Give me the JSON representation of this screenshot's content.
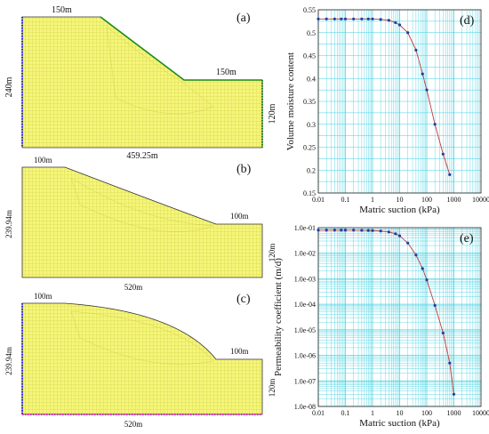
{
  "colors": {
    "mesh_fill": "#f5f57a",
    "mesh_line": "#c9c93a",
    "grid": "#40d0e0",
    "point": "#1f3fa8",
    "curve": "#c03a3a",
    "boundary_blue": "#2a2ae0",
    "boundary_green": "#1a8a1a",
    "boundary_magenta": "#e020c0"
  },
  "panel_a": {
    "tag": "(a)",
    "dim_top": "150m",
    "dim_right_top": "150m",
    "dim_left": "240m",
    "dim_right": "120m",
    "dim_bottom": "459.25m"
  },
  "panel_b": {
    "tag": "(b)",
    "dim_top": "100m",
    "dim_right_top": "100m",
    "dim_left": "239.94m",
    "dim_right": "120m",
    "dim_bottom": "520m"
  },
  "panel_c": {
    "tag": "(c)",
    "dim_top": "100m",
    "dim_right_top": "100m",
    "dim_left": "239.94m",
    "dim_right": "120m",
    "dim_bottom": "520m"
  },
  "chart_data": [
    {
      "type": "line",
      "tag": "(d)",
      "xlabel": "Matric suction (kPa)",
      "ylabel": "Volume moisture content",
      "xscale": "log",
      "xlim": [
        0.01,
        10000
      ],
      "ylim": [
        0.15,
        0.55
      ],
      "x_ticks": [
        "0.01",
        "0.1",
        "1",
        "10",
        "100",
        "1000",
        "10000"
      ],
      "y_ticks": [
        "0.15",
        "0.2",
        "0.25",
        "0.3",
        "0.35",
        "0.4",
        "0.45",
        "0.5",
        "0.55"
      ],
      "grid": true,
      "x": [
        0.01,
        0.02,
        0.04,
        0.07,
        0.1,
        0.2,
        0.4,
        0.7,
        1,
        2,
        4,
        7,
        10,
        20,
        40,
        70,
        100,
        200,
        400,
        700
      ],
      "y": [
        0.53,
        0.53,
        0.53,
        0.53,
        0.53,
        0.53,
        0.53,
        0.53,
        0.53,
        0.529,
        0.527,
        0.522,
        0.517,
        0.5,
        0.462,
        0.41,
        0.375,
        0.3,
        0.235,
        0.19
      ]
    },
    {
      "type": "line",
      "tag": "(e)",
      "xlabel": "Matric suction (kPa)",
      "ylabel": "Permeability coefficient (m/d)",
      "xscale": "log",
      "yscale": "log",
      "xlim": [
        0.01,
        10000
      ],
      "ylim": [
        1e-08,
        0.1
      ],
      "x_ticks": [
        "0.01",
        "0.1",
        "1",
        "10",
        "100",
        "1000",
        "10000"
      ],
      "y_ticks": [
        "1.0e-01",
        "1.0e-02",
        "1.0e-03",
        "1.0e-04",
        "1.0e-05",
        "1.0e-06",
        "1.0e-07",
        "1.0e-08"
      ],
      "grid": true,
      "x": [
        0.01,
        0.02,
        0.04,
        0.07,
        0.1,
        0.2,
        0.4,
        0.7,
        1,
        2,
        4,
        7,
        10,
        20,
        40,
        70,
        100,
        200,
        400,
        700,
        1000
      ],
      "y": [
        0.08,
        0.08,
        0.08,
        0.08,
        0.08,
        0.08,
        0.079,
        0.078,
        0.077,
        0.074,
        0.068,
        0.058,
        0.048,
        0.025,
        0.0085,
        0.0025,
        0.0009,
        9e-05,
        7.5e-06,
        5e-07,
        3e-08
      ]
    }
  ]
}
